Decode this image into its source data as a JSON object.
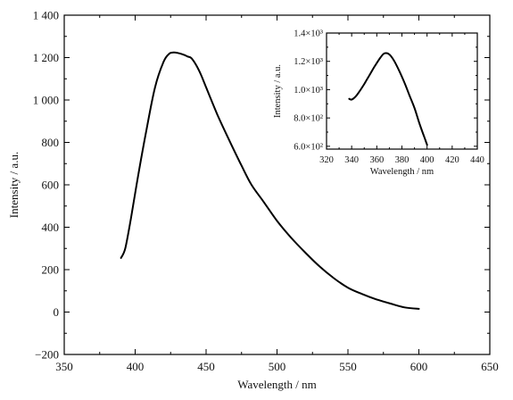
{
  "chart_data": [
    {
      "type": "line",
      "title": "",
      "xlabel": "Wavelength / nm",
      "ylabel": "Intensity / a.u.",
      "xlim": [
        350,
        650
      ],
      "ylim": [
        -200,
        1400
      ],
      "x_ticks": [
        350,
        400,
        450,
        500,
        550,
        600,
        650
      ],
      "x_tick_labels": [
        "350",
        "400",
        "450",
        "500",
        "550",
        "600",
        "650"
      ],
      "y_ticks": [
        -200,
        0,
        200,
        400,
        600,
        800,
        1000,
        1200,
        1400
      ],
      "y_tick_labels": [
        "−200",
        "0",
        "200",
        "400",
        "600",
        "800",
        "1 000",
        "1 200",
        "1 400"
      ],
      "grid": false,
      "series": [
        {
          "x": [
            390,
            393,
            397,
            402,
            408,
            414,
            420,
            424,
            427,
            430,
            434,
            437,
            440,
            445,
            450,
            458,
            466,
            475,
            482,
            490,
            500,
            510,
            520,
            530,
            540,
            550,
            560,
            570,
            580,
            590,
            600
          ],
          "y": [
            255,
            300,
            440,
            640,
            860,
            1060,
            1180,
            1218,
            1224,
            1222,
            1214,
            1205,
            1195,
            1140,
            1060,
            930,
            815,
            690,
            600,
            525,
            430,
            350,
            280,
            215,
            160,
            115,
            85,
            60,
            40,
            22,
            15
          ]
        }
      ]
    },
    {
      "type": "line",
      "title": "",
      "xlabel": "Wavelength / nm",
      "ylabel": "Intensity / a.u.",
      "xlim": [
        320,
        440
      ],
      "ylim": [
        580,
        1400
      ],
      "x_ticks": [
        320,
        340,
        360,
        380,
        400,
        420,
        440
      ],
      "x_tick_labels": [
        "320",
        "340",
        "360",
        "380",
        "400",
        "420",
        "440"
      ],
      "y_ticks": [
        600,
        800,
        1000,
        1200,
        1400
      ],
      "y_tick_labels": [
        "6.0×10²",
        "8.0×10²",
        "1.0×10³",
        "1.2×10³",
        "1.4×10³"
      ],
      "grid": false,
      "series": [
        {
          "x": [
            338,
            340,
            343,
            346,
            350,
            354,
            358,
            362,
            365,
            367,
            369,
            371,
            374,
            378,
            382,
            386,
            390,
            394,
            398,
            400
          ],
          "y": [
            935,
            930,
            950,
            985,
            1040,
            1100,
            1160,
            1215,
            1250,
            1258,
            1255,
            1240,
            1200,
            1130,
            1050,
            960,
            870,
            760,
            660,
            610
          ]
        }
      ]
    }
  ]
}
